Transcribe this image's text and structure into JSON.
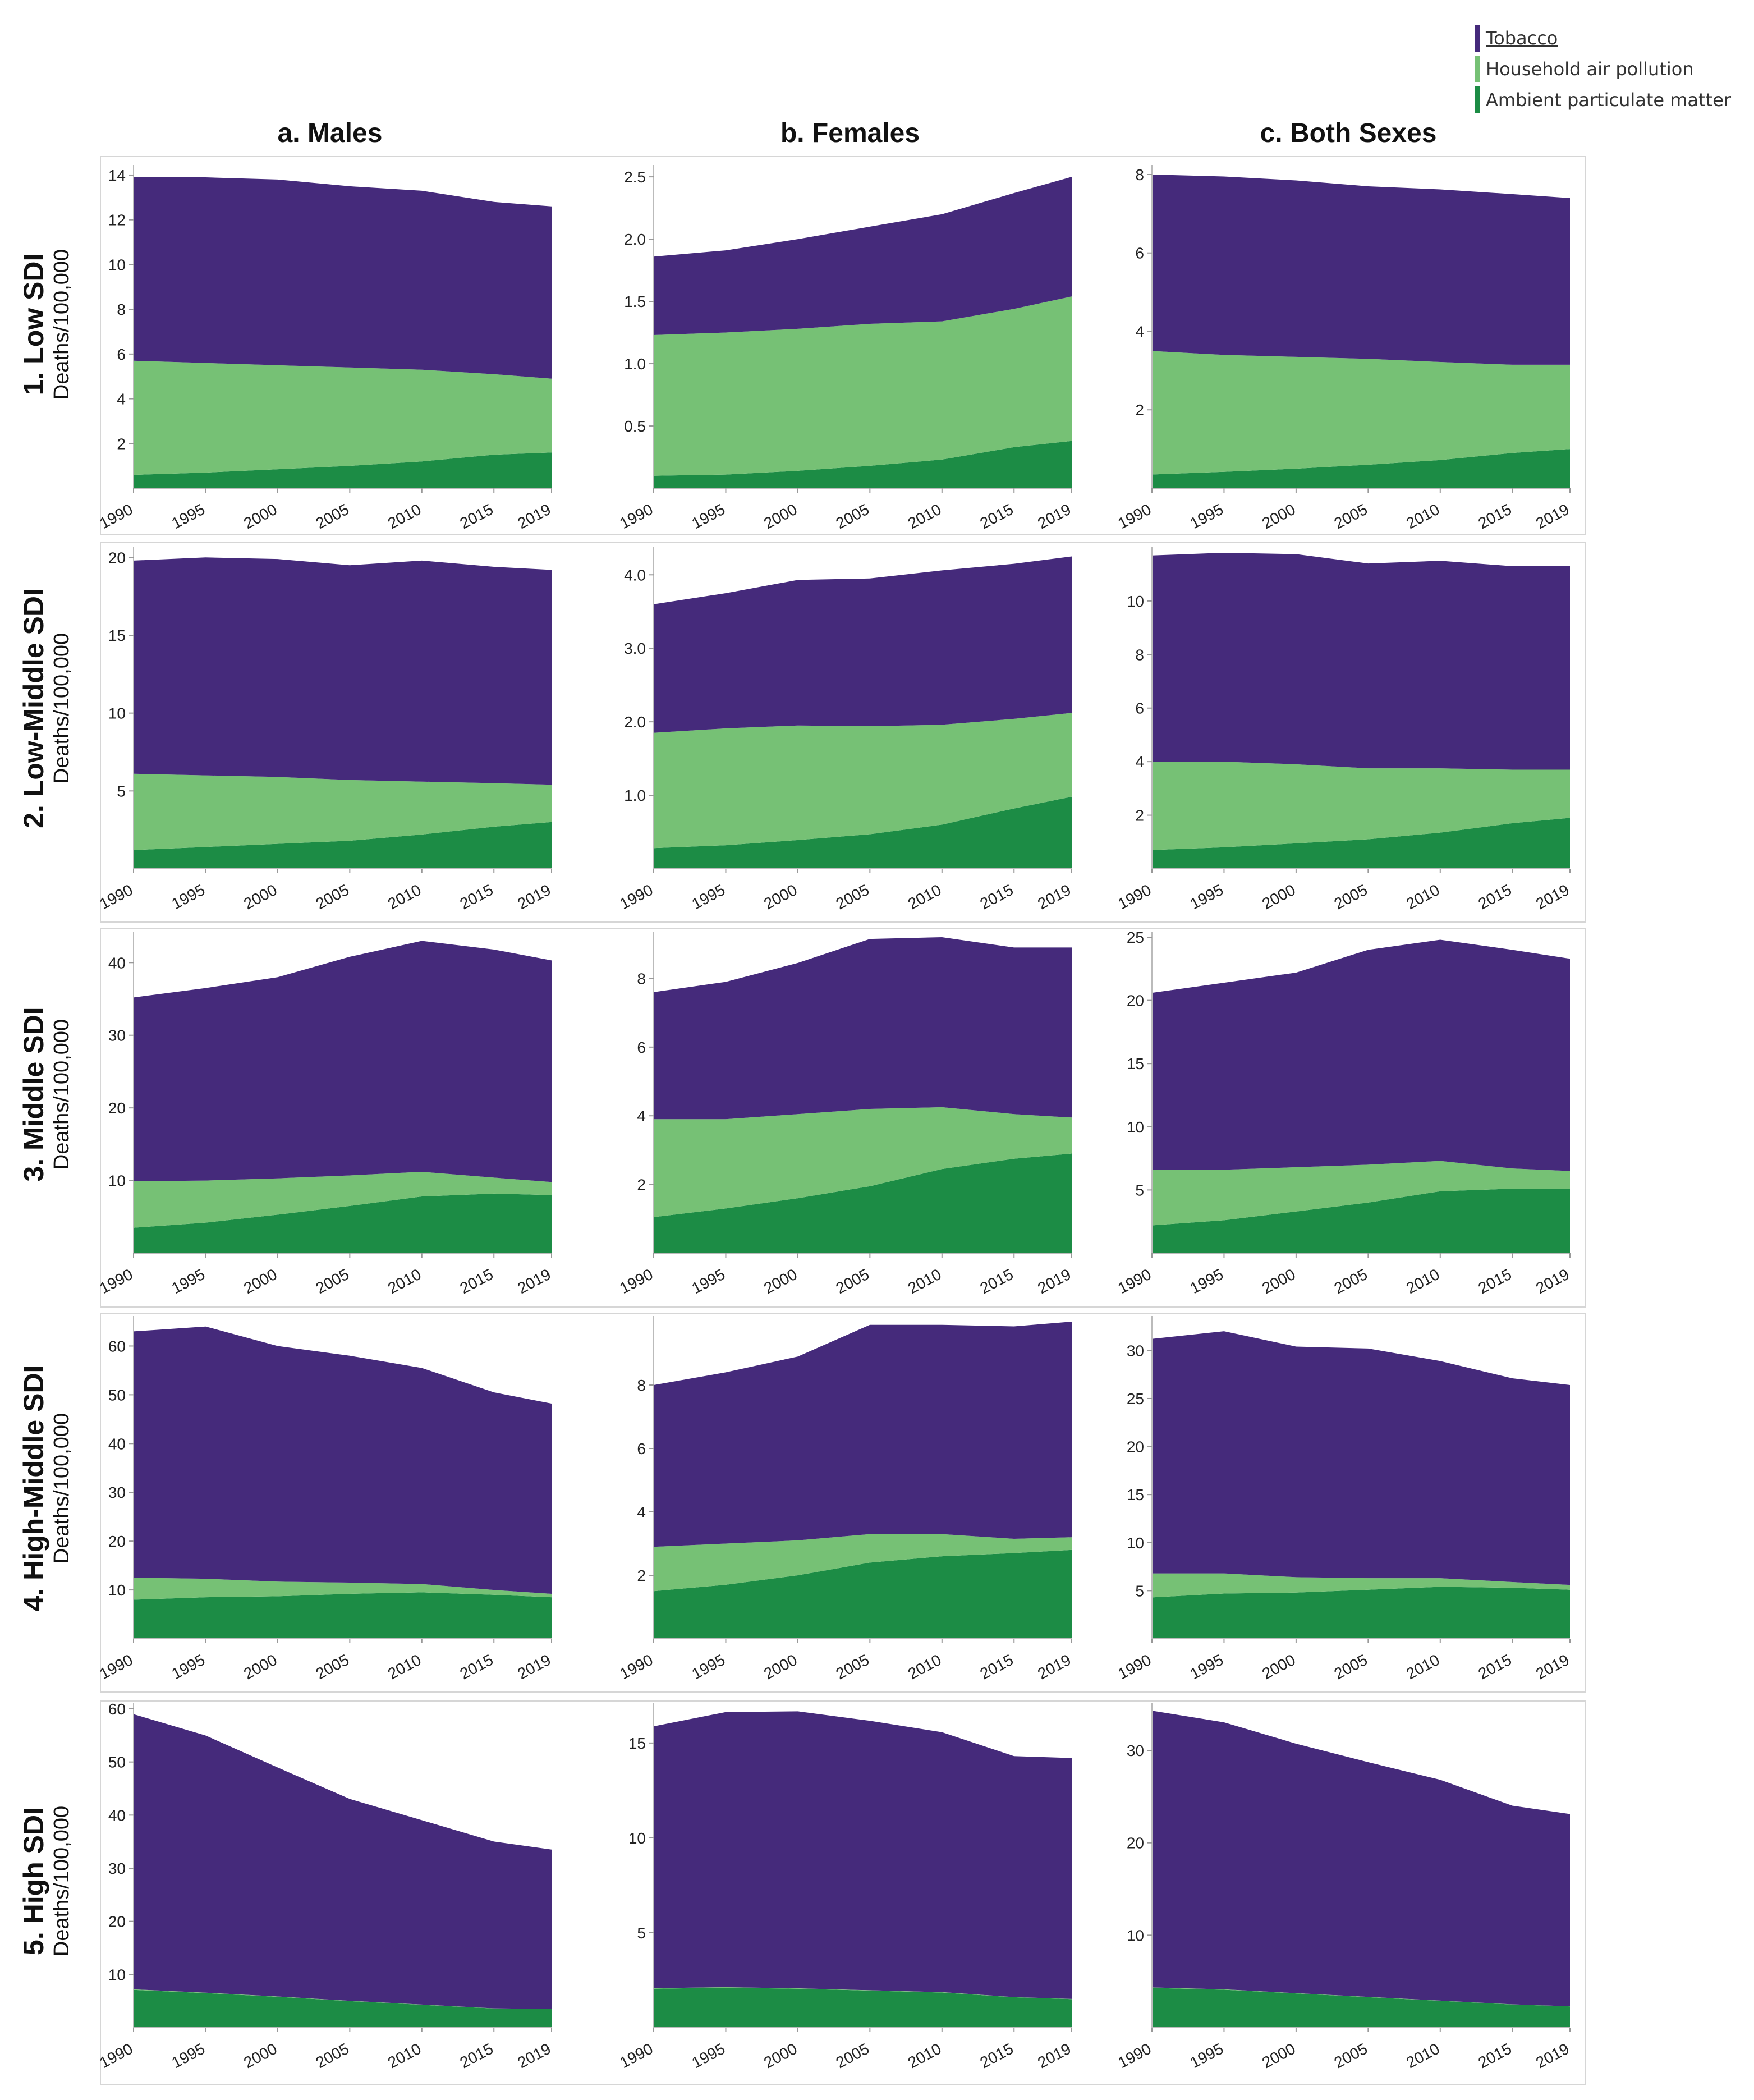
{
  "legend": {
    "items": [
      {
        "key": "tobacco",
        "label": "Tobacco",
        "color": "#452a7b"
      },
      {
        "key": "hap",
        "label": "Household air pollution",
        "color": "#76c175"
      },
      {
        "key": "apm",
        "label": "Ambient particulate matter",
        "color": "#1c8c45"
      }
    ]
  },
  "columns": [
    "a. Males",
    "b. Females",
    "c. Both Sexes"
  ],
  "rows": [
    {
      "title": "1. Low SDI",
      "unit": "Deaths/100,000"
    },
    {
      "title": "2. Low-Middle SDI",
      "unit": "Deaths/100,000"
    },
    {
      "title": "3. Middle SDI",
      "unit": "Deaths/100,000"
    },
    {
      "title": "4. High-Middle SDI",
      "unit": "Deaths/100,000"
    },
    {
      "title": "5. High SDI",
      "unit": "Deaths/100,000"
    }
  ],
  "chart_data": [
    {
      "type": "area",
      "stacked": true,
      "panel": "1a",
      "x": [
        1990,
        1995,
        2000,
        2005,
        2010,
        2015,
        2019
      ],
      "xticks": [
        "1990",
        "1995",
        "2000",
        "2005",
        "2010",
        "2015",
        "2019"
      ],
      "ylim": [
        0,
        14.2
      ],
      "yticks": [
        2,
        4,
        6,
        8,
        10,
        12,
        14
      ],
      "ytick_labels": [
        "2",
        "4",
        "6",
        "8",
        "10",
        "12",
        "14"
      ],
      "series": [
        {
          "name": "Ambient particulate matter",
          "values": [
            0.6,
            0.7,
            0.85,
            1.0,
            1.2,
            1.5,
            1.6
          ]
        },
        {
          "name": "Household air pollution",
          "values": [
            5.1,
            4.9,
            4.65,
            4.4,
            4.1,
            3.6,
            3.3
          ]
        },
        {
          "name": "Tobacco",
          "values": [
            8.2,
            8.3,
            8.3,
            8.1,
            8.0,
            7.7,
            7.7
          ]
        }
      ]
    },
    {
      "type": "area",
      "stacked": true,
      "panel": "1b",
      "x": [
        1990,
        1995,
        2000,
        2005,
        2010,
        2015,
        2019
      ],
      "xticks": [
        "1990",
        "1995",
        "2000",
        "2005",
        "2010",
        "2015",
        "2019"
      ],
      "ylim": [
        0,
        2.55
      ],
      "yticks": [
        0.5,
        1.0,
        1.5,
        2.0,
        2.5
      ],
      "ytick_labels": [
        "0.5",
        "1.0",
        "1.5",
        "2.0",
        "2.5"
      ],
      "series": [
        {
          "name": "Ambient particulate matter",
          "values": [
            0.1,
            0.11,
            0.14,
            0.18,
            0.23,
            0.33,
            0.38
          ]
        },
        {
          "name": "Household air pollution",
          "values": [
            1.13,
            1.14,
            1.14,
            1.14,
            1.11,
            1.11,
            1.16
          ]
        },
        {
          "name": "Tobacco",
          "values": [
            0.63,
            0.66,
            0.72,
            0.78,
            0.86,
            0.93,
            0.96
          ]
        }
      ]
    },
    {
      "type": "area",
      "stacked": true,
      "panel": "1c",
      "x": [
        1990,
        1995,
        2000,
        2005,
        2010,
        2015,
        2019
      ],
      "xticks": [
        "1990",
        "1995",
        "2000",
        "2005",
        "2010",
        "2015",
        "2019"
      ],
      "ylim": [
        0,
        8.1
      ],
      "yticks": [
        2,
        4,
        6,
        8
      ],
      "ytick_labels": [
        "2",
        "4",
        "6",
        "8"
      ],
      "series": [
        {
          "name": "Ambient particulate matter",
          "values": [
            0.35,
            0.42,
            0.5,
            0.6,
            0.72,
            0.9,
            1.0
          ]
        },
        {
          "name": "Household air pollution",
          "values": [
            3.15,
            2.98,
            2.85,
            2.7,
            2.5,
            2.25,
            2.15
          ]
        },
        {
          "name": "Tobacco",
          "values": [
            4.5,
            4.55,
            4.5,
            4.4,
            4.4,
            4.35,
            4.25
          ]
        }
      ]
    },
    {
      "type": "area",
      "stacked": true,
      "panel": "2a",
      "x": [
        1990,
        1995,
        2000,
        2005,
        2010,
        2015,
        2019
      ],
      "xticks": [
        "1990",
        "1995",
        "2000",
        "2005",
        "2010",
        "2015",
        "2019"
      ],
      "ylim": [
        0,
        20.3
      ],
      "yticks": [
        5,
        10,
        15,
        20
      ],
      "ytick_labels": [
        "5",
        "10",
        "15",
        "20"
      ],
      "series": [
        {
          "name": "Ambient particulate matter",
          "values": [
            1.2,
            1.4,
            1.6,
            1.8,
            2.2,
            2.7,
            3.0
          ]
        },
        {
          "name": "Household air pollution",
          "values": [
            4.9,
            4.6,
            4.3,
            3.9,
            3.4,
            2.8,
            2.4
          ]
        },
        {
          "name": "Tobacco",
          "values": [
            13.7,
            14.0,
            14.0,
            13.8,
            14.2,
            13.9,
            13.8
          ]
        }
      ]
    },
    {
      "type": "area",
      "stacked": true,
      "panel": "2b",
      "x": [
        1990,
        1995,
        2000,
        2005,
        2010,
        2015,
        2019
      ],
      "xticks": [
        "1990",
        "1995",
        "2000",
        "2005",
        "2010",
        "2015",
        "2019"
      ],
      "ylim": [
        0,
        4.3
      ],
      "yticks": [
        1.0,
        2.0,
        3.0,
        4.0
      ],
      "ytick_labels": [
        "1.0",
        "2.0",
        "3.0",
        "4.0"
      ],
      "series": [
        {
          "name": "Ambient particulate matter",
          "values": [
            0.28,
            0.32,
            0.39,
            0.47,
            0.6,
            0.82,
            0.98
          ]
        },
        {
          "name": "Household air pollution",
          "values": [
            1.57,
            1.59,
            1.56,
            1.47,
            1.36,
            1.22,
            1.14
          ]
        },
        {
          "name": "Tobacco",
          "values": [
            1.75,
            1.84,
            1.98,
            2.01,
            2.1,
            2.11,
            2.13
          ]
        }
      ]
    },
    {
      "type": "area",
      "stacked": true,
      "panel": "2c",
      "x": [
        1990,
        1995,
        2000,
        2005,
        2010,
        2015,
        2019
      ],
      "xticks": [
        "1990",
        "1995",
        "2000",
        "2005",
        "2010",
        "2015",
        "2019"
      ],
      "ylim": [
        0,
        11.8
      ],
      "yticks": [
        2,
        4,
        6,
        8,
        10
      ],
      "ytick_labels": [
        "2",
        "4",
        "6",
        "8",
        "10"
      ],
      "series": [
        {
          "name": "Ambient particulate matter",
          "values": [
            0.7,
            0.8,
            0.95,
            1.1,
            1.35,
            1.7,
            1.9
          ]
        },
        {
          "name": "Household air pollution",
          "values": [
            3.3,
            3.2,
            2.95,
            2.65,
            2.4,
            2.0,
            1.8
          ]
        },
        {
          "name": "Tobacco",
          "values": [
            7.7,
            7.8,
            7.85,
            7.65,
            7.75,
            7.6,
            7.6
          ]
        }
      ]
    },
    {
      "type": "area",
      "stacked": true,
      "panel": "3a",
      "x": [
        1990,
        1995,
        2000,
        2005,
        2010,
        2015,
        2019
      ],
      "xticks": [
        "1990",
        "1995",
        "2000",
        "2005",
        "2010",
        "2015",
        "2019"
      ],
      "ylim": [
        0,
        43.5
      ],
      "yticks": [
        10,
        20,
        30,
        40
      ],
      "ytick_labels": [
        "10",
        "20",
        "30",
        "40"
      ],
      "series": [
        {
          "name": "Ambient particulate matter",
          "values": [
            3.5,
            4.2,
            5.3,
            6.5,
            7.8,
            8.2,
            8.0
          ]
        },
        {
          "name": "Household air pollution",
          "values": [
            6.4,
            5.8,
            5.0,
            4.2,
            3.4,
            2.2,
            1.8
          ]
        },
        {
          "name": "Tobacco",
          "values": [
            25.3,
            26.5,
            27.7,
            30.1,
            31.8,
            31.4,
            30.5
          ]
        }
      ]
    },
    {
      "type": "area",
      "stacked": true,
      "panel": "3b",
      "x": [
        1990,
        1995,
        2000,
        2005,
        2010,
        2015,
        2019
      ],
      "xticks": [
        "1990",
        "1995",
        "2000",
        "2005",
        "2010",
        "2015",
        "2019"
      ],
      "ylim": [
        0,
        9.2
      ],
      "yticks": [
        2,
        4,
        6,
        8
      ],
      "ytick_labels": [
        "2",
        "4",
        "6",
        "8"
      ],
      "series": [
        {
          "name": "Ambient particulate matter",
          "values": [
            1.05,
            1.3,
            1.6,
            1.95,
            2.45,
            2.75,
            2.9
          ]
        },
        {
          "name": "Household air pollution",
          "values": [
            2.85,
            2.6,
            2.45,
            2.25,
            1.8,
            1.3,
            1.05
          ]
        },
        {
          "name": "Tobacco",
          "values": [
            3.7,
            4.0,
            4.4,
            4.95,
            4.95,
            4.85,
            4.95
          ]
        }
      ]
    },
    {
      "type": "area",
      "stacked": true,
      "panel": "3c",
      "x": [
        1990,
        1995,
        2000,
        2005,
        2010,
        2015,
        2019
      ],
      "xticks": [
        "1990",
        "1995",
        "2000",
        "2005",
        "2010",
        "2015",
        "2019"
      ],
      "ylim": [
        0,
        25
      ],
      "yticks": [
        5,
        10,
        15,
        20,
        25
      ],
      "ytick_labels": [
        "5",
        "10",
        "15",
        "20",
        "25"
      ],
      "series": [
        {
          "name": "Ambient particulate matter",
          "values": [
            2.2,
            2.6,
            3.3,
            4.0,
            4.9,
            5.1,
            5.1
          ]
        },
        {
          "name": "Household air pollution",
          "values": [
            4.4,
            4.0,
            3.5,
            3.0,
            2.4,
            1.6,
            1.4
          ]
        },
        {
          "name": "Tobacco",
          "values": [
            14.0,
            14.8,
            15.4,
            17.0,
            17.5,
            17.3,
            16.8
          ]
        }
      ]
    },
    {
      "type": "area",
      "stacked": true,
      "panel": "4a",
      "x": [
        1990,
        1995,
        2000,
        2005,
        2010,
        2015,
        2019
      ],
      "xticks": [
        "1990",
        "1995",
        "2000",
        "2005",
        "2010",
        "2015",
        "2019"
      ],
      "ylim": [
        0,
        65
      ],
      "yticks": [
        10,
        20,
        30,
        40,
        50,
        60
      ],
      "ytick_labels": [
        "10",
        "20",
        "30",
        "40",
        "50",
        "60"
      ],
      "series": [
        {
          "name": "Ambient particulate matter",
          "values": [
            8.0,
            8.5,
            8.7,
            9.2,
            9.5,
            9.0,
            8.5
          ]
        },
        {
          "name": "Household air pollution",
          "values": [
            4.5,
            3.8,
            3.0,
            2.3,
            1.7,
            1.0,
            0.7
          ]
        },
        {
          "name": "Tobacco",
          "values": [
            50.5,
            51.7,
            48.3,
            46.5,
            44.3,
            40.5,
            39.0
          ]
        }
      ]
    },
    {
      "type": "area",
      "stacked": true,
      "panel": "4b",
      "x": [
        1990,
        1995,
        2000,
        2005,
        2010,
        2015,
        2019
      ],
      "xticks": [
        "1990",
        "1995",
        "2000",
        "2005",
        "2010",
        "2015",
        "2019"
      ],
      "ylim": [
        0,
        10
      ],
      "yticks": [
        2,
        4,
        6,
        8
      ],
      "ytick_labels": [
        "2",
        "4",
        "6",
        "8"
      ],
      "series": [
        {
          "name": "Ambient particulate matter",
          "values": [
            1.5,
            1.7,
            2.0,
            2.4,
            2.6,
            2.7,
            2.8
          ]
        },
        {
          "name": "Household air pollution",
          "values": [
            1.4,
            1.3,
            1.1,
            0.9,
            0.7,
            0.45,
            0.4
          ]
        },
        {
          "name": "Tobacco",
          "values": [
            5.1,
            5.4,
            5.8,
            6.6,
            6.6,
            6.7,
            6.8
          ]
        }
      ]
    },
    {
      "type": "area",
      "stacked": true,
      "panel": "4c",
      "x": [
        1990,
        1995,
        2000,
        2005,
        2010,
        2015,
        2019
      ],
      "xticks": [
        "1990",
        "1995",
        "2000",
        "2005",
        "2010",
        "2015",
        "2019"
      ],
      "ylim": [
        0,
        33
      ],
      "yticks": [
        5,
        10,
        15,
        20,
        25,
        30
      ],
      "ytick_labels": [
        "5",
        "10",
        "15",
        "20",
        "25",
        "30"
      ],
      "series": [
        {
          "name": "Ambient particulate matter",
          "values": [
            4.3,
            4.7,
            4.8,
            5.1,
            5.4,
            5.3,
            5.1
          ]
        },
        {
          "name": "Household air pollution",
          "values": [
            2.5,
            2.1,
            1.6,
            1.2,
            0.9,
            0.6,
            0.5
          ]
        },
        {
          "name": "Tobacco",
          "values": [
            24.4,
            25.2,
            24.0,
            23.9,
            22.6,
            21.2,
            20.8
          ]
        }
      ]
    },
    {
      "type": "area",
      "stacked": true,
      "panel": "5a",
      "x": [
        1990,
        1995,
        2000,
        2005,
        2010,
        2015,
        2019
      ],
      "xticks": [
        "1990",
        "1995",
        "2000",
        "2005",
        "2010",
        "2015",
        "2019"
      ],
      "ylim": [
        0,
        60
      ],
      "yticks": [
        10,
        20,
        30,
        40,
        50,
        60
      ],
      "ytick_labels": [
        "10",
        "20",
        "30",
        "40",
        "50",
        "60"
      ],
      "series": [
        {
          "name": "Ambient particulate matter",
          "values": [
            7.1,
            6.5,
            5.8,
            5.0,
            4.3,
            3.6,
            3.5
          ]
        },
        {
          "name": "Household air pollution",
          "values": [
            0.1,
            0.08,
            0.06,
            0.05,
            0.04,
            0.03,
            0.02
          ]
        },
        {
          "name": "Tobacco",
          "values": [
            51.8,
            48.4,
            43.1,
            38.0,
            34.7,
            31.4,
            30.0
          ]
        }
      ]
    },
    {
      "type": "area",
      "stacked": true,
      "panel": "5b",
      "x": [
        1990,
        1995,
        2000,
        2005,
        2010,
        2015,
        2019
      ],
      "xticks": [
        "1990",
        "1995",
        "2000",
        "2005",
        "2010",
        "2015",
        "2019"
      ],
      "ylim": [
        0,
        16.8
      ],
      "yticks": [
        5,
        10,
        15
      ],
      "ytick_labels": [
        "5",
        "10",
        "15"
      ],
      "series": [
        {
          "name": "Ambient particulate matter",
          "values": [
            2.05,
            2.1,
            2.05,
            1.95,
            1.85,
            1.6,
            1.5
          ]
        },
        {
          "name": "Household air pollution",
          "values": [
            0.03,
            0.03,
            0.02,
            0.02,
            0.02,
            0.01,
            0.01
          ]
        },
        {
          "name": "Tobacco",
          "values": [
            13.8,
            14.5,
            14.6,
            14.2,
            13.7,
            12.7,
            12.7
          ]
        }
      ]
    },
    {
      "type": "area",
      "stacked": true,
      "panel": "5c",
      "x": [
        1990,
        1995,
        2000,
        2005,
        2010,
        2015,
        2019
      ],
      "xticks": [
        "1990",
        "1995",
        "2000",
        "2005",
        "2010",
        "2015",
        "2019"
      ],
      "ylim": [
        0,
        34.5
      ],
      "yticks": [
        10,
        20,
        30
      ],
      "ytick_labels": [
        "10",
        "20",
        "30"
      ],
      "series": [
        {
          "name": "Ambient particulate matter",
          "values": [
            4.3,
            4.1,
            3.7,
            3.3,
            2.9,
            2.5,
            2.3
          ]
        },
        {
          "name": "Household air pollution",
          "values": [
            0.05,
            0.04,
            0.03,
            0.03,
            0.02,
            0.02,
            0.01
          ]
        },
        {
          "name": "Tobacco",
          "values": [
            29.95,
            28.9,
            27.0,
            25.4,
            23.9,
            21.5,
            20.8
          ]
        }
      ]
    }
  ]
}
